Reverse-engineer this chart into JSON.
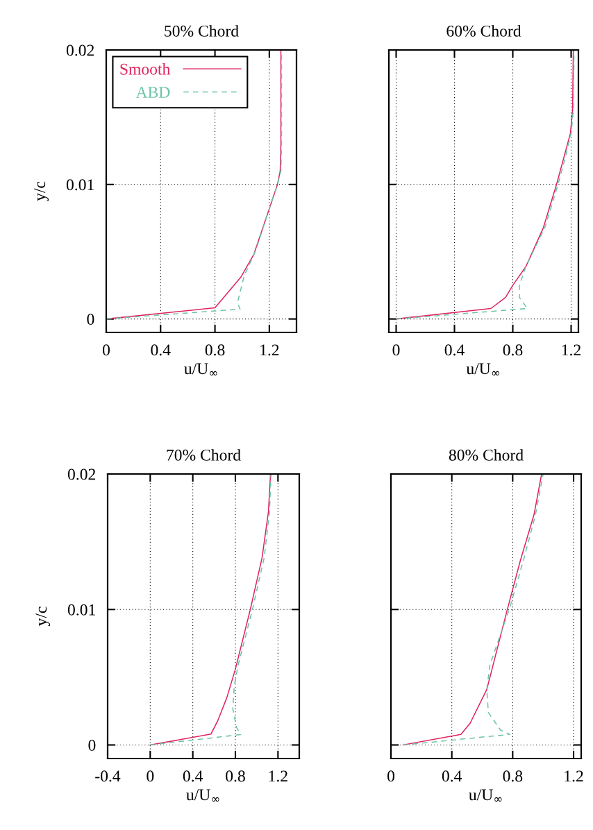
{
  "chart_data": [
    {
      "type": "line",
      "title": "50% Chord",
      "xlabel": "u/U$_{∞}$",
      "ylabel": "y/c",
      "xlim": [
        0,
        1.4
      ],
      "ylim": [
        -0.001,
        0.02
      ],
      "xticks": [
        0,
        0.4,
        0.8,
        1.2
      ],
      "yticks": [
        0,
        0.01,
        0.02
      ],
      "grid": true,
      "legend": "top left",
      "series": [
        {
          "name": "Smooth",
          "color": "#e0245e",
          "line_style": "solid",
          "x": [
            0,
            0.8,
            0.99,
            1.086,
            1.19,
            1.26,
            1.28,
            1.285,
            1.285
          ],
          "values": [
            0,
            0.00083,
            0.0031,
            0.0048,
            0.0079,
            0.01,
            0.011,
            0.013,
            0.02
          ]
        },
        {
          "name": "ABD",
          "color": "#6cc4a4",
          "line_style": "dashed",
          "x": [
            0,
            0.985,
            0.965,
            1.015,
            1.1,
            1.19,
            1.26,
            1.285,
            1.29,
            1.29
          ],
          "values": [
            0,
            0.00073,
            0.0012,
            0.0032,
            0.0051,
            0.0079,
            0.01,
            0.011,
            0.013,
            0.02
          ]
        }
      ]
    },
    {
      "type": "line",
      "title": "60% Chord",
      "xlabel": "u/U$_{∞}$",
      "xlim": [
        -0.05,
        1.25
      ],
      "ylim": [
        -0.001,
        0.02
      ],
      "xticks": [
        0,
        0.4,
        0.8,
        1.2
      ],
      "yticks": [
        0,
        0.01,
        0.02
      ],
      "grid": true,
      "tick_labels": "x",
      "series": [
        {
          "color": "#e0245e",
          "line_style": "solid",
          "x": [
            0,
            0.65,
            0.75,
            0.8,
            0.89,
            1.01,
            1.1,
            1.15,
            1.195,
            1.21,
            1.215
          ],
          "values": [
            0,
            0.00078,
            0.0016,
            0.0025,
            0.0039,
            0.0068,
            0.01,
            0.012,
            0.0138,
            0.0155,
            0.02
          ]
        },
        {
          "color": "#6cc4a4",
          "line_style": "dashed",
          "x": [
            0,
            0.9,
            0.845,
            0.845,
            0.89,
            1.02,
            1.11,
            1.16,
            1.2,
            1.215,
            1.22
          ],
          "values": [
            0,
            0.00078,
            0.0016,
            0.0025,
            0.0039,
            0.0068,
            0.01,
            0.012,
            0.0138,
            0.0155,
            0.02
          ]
        }
      ]
    },
    {
      "type": "line",
      "title": "70% Chord",
      "xlabel": "u/U$_{∞}$",
      "ylabel": "y/c",
      "xlim": [
        -0.4,
        1.4
      ],
      "ylim": [
        -0.001,
        0.02
      ],
      "xticks": [
        -0.4,
        0,
        0.4,
        0.8,
        1.2
      ],
      "yticks": [
        0,
        0.01,
        0.02
      ],
      "grid": true,
      "series": [
        {
          "color": "#e0245e",
          "line_style": "solid",
          "x": [
            0,
            0.57,
            0.635,
            0.72,
            0.8,
            0.94,
            1.05,
            1.11,
            1.13
          ],
          "values": [
            0,
            0.0008,
            0.0018,
            0.0035,
            0.0056,
            0.01,
            0.0138,
            0.0172,
            0.02
          ]
        },
        {
          "color": "#6cc4a4",
          "line_style": "dashed",
          "x": [
            0,
            0.85,
            0.81,
            0.775,
            0.79,
            0.826,
            0.96,
            1.07,
            1.12,
            1.135
          ],
          "values": [
            0,
            0.00077,
            0.0013,
            0.0027,
            0.0044,
            0.0059,
            0.01,
            0.0138,
            0.0172,
            0.02
          ]
        }
      ]
    },
    {
      "type": "line",
      "title": "80% Chord",
      "xlabel": "u/U$_{∞}$",
      "xlim": [
        0,
        1.25
      ],
      "ylim": [
        -0.001,
        0.02
      ],
      "xticks": [
        0,
        0.4,
        0.8,
        1.2
      ],
      "yticks": [
        0,
        0.01,
        0.02
      ],
      "grid": true,
      "tick_labels": "x",
      "series": [
        {
          "color": "#e0245e",
          "line_style": "solid",
          "x": [
            0.08,
            0.46,
            0.52,
            0.63,
            0.76,
            0.85,
            0.94,
            0.99
          ],
          "values": [
            0,
            0.00078,
            0.0016,
            0.0041,
            0.0098,
            0.0136,
            0.017,
            0.02
          ]
        },
        {
          "color": "#6cc4a4",
          "line_style": "dashed",
          "x": [
            0.08,
            0.78,
            0.72,
            0.64,
            0.63,
            0.65,
            0.78,
            0.87,
            0.95,
            1.0
          ],
          "values": [
            0,
            0.00078,
            0.0011,
            0.0024,
            0.0041,
            0.0059,
            0.0101,
            0.0136,
            0.017,
            0.02
          ]
        }
      ]
    }
  ]
}
